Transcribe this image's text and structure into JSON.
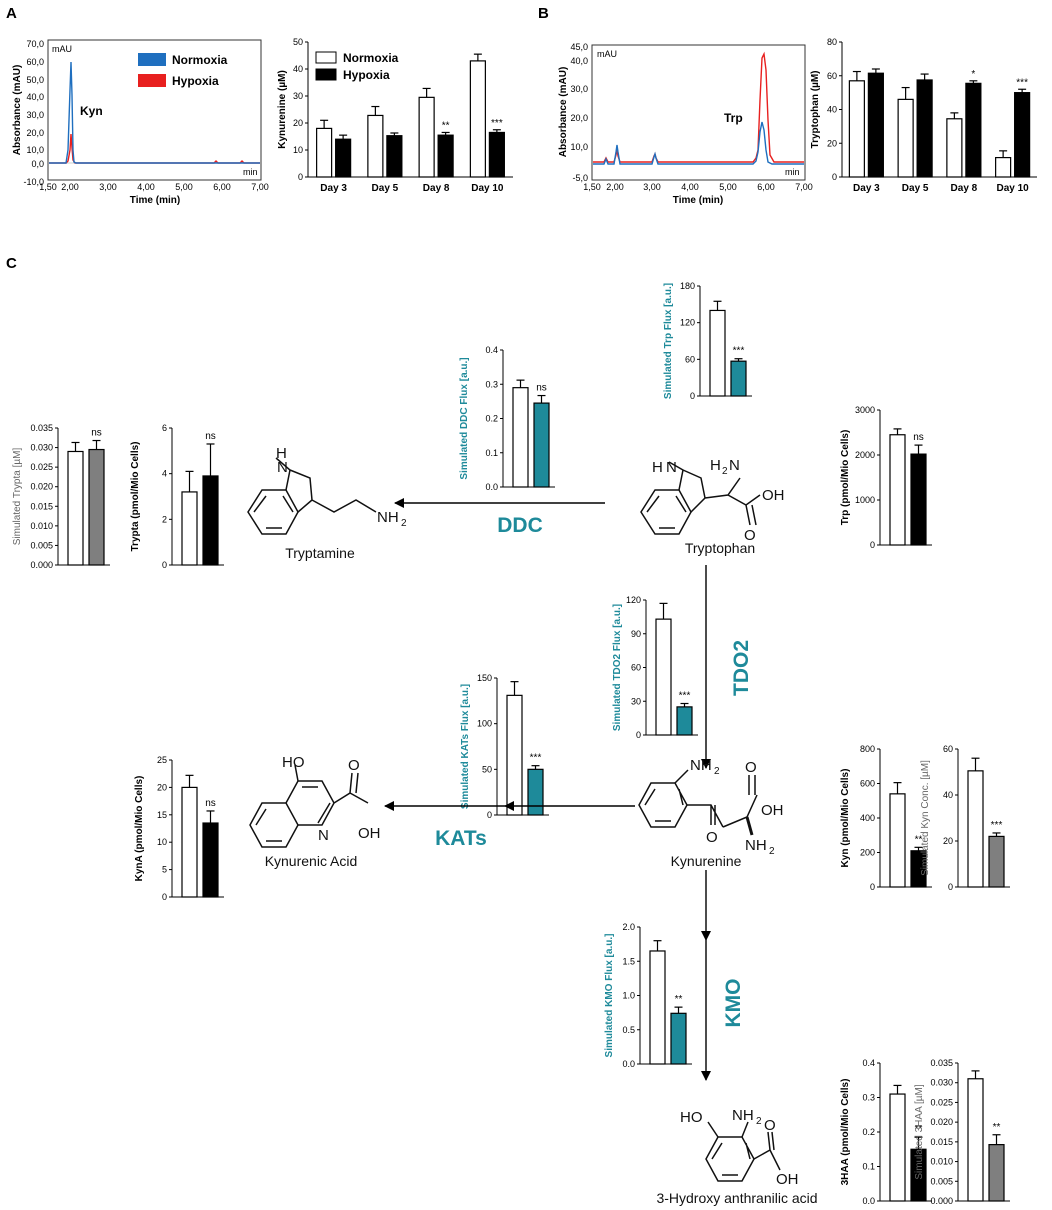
{
  "panels": {
    "A": "A",
    "B": "B",
    "C": "C"
  },
  "chromatograms": [
    {
      "id": "A",
      "unit_label": "mAU",
      "min_label": "min",
      "ylabel": "Absorbance (mAU)",
      "xlabel": "Time (min)",
      "yticks": [
        "70,0",
        "60,0",
        "50,0",
        "40,0",
        "30,0",
        "20,0",
        "10,0",
        "0,0",
        "-10,0"
      ],
      "xticks": [
        "1,50",
        "2,00",
        "3,00",
        "4,00",
        "5,00",
        "6,00",
        "7,00"
      ],
      "peak_label": "Kyn",
      "legend": [
        "Normoxia",
        "Hypoxia"
      ]
    },
    {
      "id": "B",
      "unit_label": "mAU",
      "min_label": "min",
      "ylabel": "Absorbance (mAU)",
      "xlabel": "Time (min)",
      "yticks": [
        "45,0",
        "40,0",
        "30,0",
        "20,0",
        "10,0",
        "-5,0"
      ],
      "xticks": [
        "1,50",
        "2,00",
        "3,00",
        "4,00",
        "5,00",
        "6,00",
        "7,00"
      ],
      "peak_label": "Trp"
    }
  ],
  "chart_data": [
    {
      "type": "bar",
      "ylabel": "Kynurenine (µM)",
      "categories": [
        "Day 3",
        "Day 5",
        "Day 8",
        "Day 10"
      ],
      "ylim": [
        0,
        50
      ],
      "yticks": [
        "0",
        "10",
        "20",
        "30",
        "40",
        "50"
      ],
      "series": [
        {
          "name": "Normoxia",
          "values": [
            18,
            22.8,
            29.5,
            43
          ],
          "errors": [
            3,
            3.3,
            3.3,
            2.5
          ]
        },
        {
          "name": "Hypoxia",
          "values": [
            14,
            15.3,
            15.5,
            16.5
          ],
          "errors": [
            1.5,
            1,
            1,
            1
          ]
        }
      ],
      "significance": [
        "",
        "",
        "**",
        "***"
      ],
      "legend_position": "top-left",
      "colors": {
        "Normoxia": "#ffffff",
        "Hypoxia": "#000000"
      }
    },
    {
      "type": "bar",
      "ylabel": "Tryptophan (µM)",
      "categories": [
        "Day 3",
        "Day 5",
        "Day 8",
        "Day 10"
      ],
      "ylim": [
        0,
        80
      ],
      "yticks": [
        "0",
        "20",
        "40",
        "60",
        "80"
      ],
      "series": [
        {
          "values": [
            57,
            46,
            34.5,
            11.5
          ],
          "errors": [
            5.5,
            7,
            3.5,
            4
          ]
        },
        {
          "values": [
            61.5,
            57.5,
            55.5,
            50
          ],
          "errors": [
            2.5,
            3.5,
            1.5,
            2
          ]
        }
      ],
      "significance": [
        "",
        "",
        "*",
        "***"
      ]
    },
    {
      "type": "bar",
      "ylabel": "Simulated Trypta [µM]",
      "ylim": [
        0,
        0.035
      ],
      "yticks": [
        "0.000",
        "0.005",
        "0.010",
        "0.015",
        "0.020",
        "0.025",
        "0.030",
        "0.035"
      ],
      "values": [
        0.029,
        0.0295
      ],
      "errors": [
        0.0023,
        0.0023
      ],
      "significance": "ns"
    },
    {
      "type": "bar",
      "ylabel": "Trypta (pmol/Mio Cells)",
      "ylim": [
        0,
        6
      ],
      "yticks": [
        "0",
        "2",
        "4",
        "6"
      ],
      "values": [
        3.2,
        3.9
      ],
      "errors": [
        0.9,
        1.4
      ],
      "significance": "ns"
    },
    {
      "type": "bar",
      "ylabel": "Simulated DDC Flux [a.u.]",
      "ylim": [
        0,
        0.4
      ],
      "yticks": [
        "0.0",
        "0.1",
        "0.2",
        "0.3",
        "0.4"
      ],
      "values": [
        0.29,
        0.245
      ],
      "errors": [
        0.022,
        0.022
      ],
      "significance": "ns"
    },
    {
      "type": "bar",
      "ylabel": "Simulated Trp Flux [a.u.]",
      "ylim": [
        0,
        180
      ],
      "yticks": [
        "0",
        "60",
        "120",
        "180"
      ],
      "values": [
        140,
        57
      ],
      "errors": [
        15,
        4
      ],
      "significance": "***"
    },
    {
      "type": "bar",
      "ylabel": "Trp (pmol/Mio Cells)",
      "ylim": [
        0,
        3000
      ],
      "yticks": [
        "0",
        "1000",
        "2000",
        "3000"
      ],
      "values": [
        2450,
        2020
      ],
      "errors": [
        130,
        200
      ],
      "significance": "ns"
    },
    {
      "type": "bar",
      "ylabel": "Simulated TDO2 Flux [a.u.]",
      "ylim": [
        0,
        120
      ],
      "yticks": [
        "0",
        "30",
        "60",
        "90",
        "120"
      ],
      "values": [
        103,
        25
      ],
      "errors": [
        14,
        3
      ],
      "significance": "***"
    },
    {
      "type": "bar",
      "ylabel": "Simulated KATs Flux [a.u.]",
      "ylim": [
        0,
        150
      ],
      "yticks": [
        "0",
        "50",
        "100",
        "150"
      ],
      "values": [
        131,
        50
      ],
      "errors": [
        15,
        4
      ],
      "significance": "***"
    },
    {
      "type": "bar",
      "ylabel": "KynA (pmol/Mio Cells)",
      "ylim": [
        0,
        25
      ],
      "yticks": [
        "0",
        "5",
        "10",
        "15",
        "20",
        "25"
      ],
      "values": [
        20,
        13.5
      ],
      "errors": [
        2.2,
        2.2
      ],
      "significance": "ns"
    },
    {
      "type": "bar",
      "ylabel": "Kyn (pmol/Mio Cells)",
      "ylim": [
        0,
        800
      ],
      "yticks": [
        "0",
        "200",
        "400",
        "600",
        "800"
      ],
      "values": [
        540,
        210
      ],
      "errors": [
        65,
        20
      ],
      "significance": "**"
    },
    {
      "type": "bar",
      "ylabel": "Simulated Kyn Conc. [µM]",
      "ylim": [
        0,
        60
      ],
      "yticks": [
        "0",
        "20",
        "40",
        "60"
      ],
      "values": [
        50.5,
        22
      ],
      "errors": [
        5.5,
        1.5
      ],
      "significance": "***"
    },
    {
      "type": "bar",
      "ylabel": "Simulated KMO Flux [a.u.]",
      "ylim": [
        0,
        2.0
      ],
      "yticks": [
        "0.0",
        "0.5",
        "1.0",
        "1.5",
        "2.0"
      ],
      "values": [
        1.65,
        0.74
      ],
      "errors": [
        0.15,
        0.09
      ],
      "significance": "**"
    },
    {
      "type": "bar",
      "ylabel": "3HAA (pmol/Mio Cells)",
      "ylim": [
        0,
        0.4
      ],
      "yticks": [
        "0.0",
        "0.1",
        "0.2",
        "0.3",
        "0.4"
      ],
      "values": [
        0.31,
        0.15
      ],
      "errors": [
        0.025,
        0.035
      ],
      "significance": "**"
    },
    {
      "type": "bar",
      "ylabel": "Simulated 3HAA [µM]",
      "ylim": [
        0,
        0.035
      ],
      "yticks": [
        "0.000",
        "0.005",
        "0.010",
        "0.015",
        "0.020",
        "0.025",
        "0.030",
        "0.035"
      ],
      "values": [
        0.031,
        0.0143
      ],
      "errors": [
        0.002,
        0.0025
      ],
      "significance": "**"
    }
  ],
  "pathway": {
    "enzymes": [
      "DDC",
      "TDO2",
      "KATs",
      "KMO"
    ],
    "molecules": [
      "Tryptamine",
      "Tryptophan",
      "Kynurenic Acid",
      "Kynurenine",
      "3-Hydroxy anthranilic acid"
    ],
    "atoms": {
      "nh": "H",
      "n_indole": "N",
      "nh2": "NH",
      "h2n": "H",
      "two": "2",
      "oh": "OH",
      "o": "O",
      "n": "N",
      "ho": "HO"
    }
  },
  "colors": {
    "teal": "#1e8a9a",
    "gray_bar": "#7f7f7f",
    "normoxia_trace": "#1f6fbf",
    "hypoxia_trace": "#e8201f",
    "black": "#000000",
    "white": "#ffffff"
  }
}
